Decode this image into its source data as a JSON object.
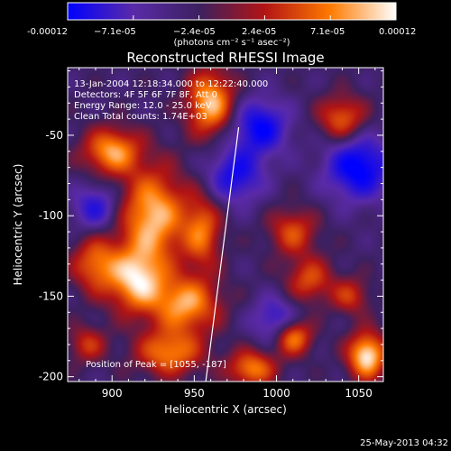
{
  "chart_data": {
    "type": "heatmap",
    "title": "Reconstructed RHESSI Image",
    "colorbar": {
      "ticks": [
        "-0.00012",
        "−7.1e-05",
        "−2.4e-05",
        "2.4e-05",
        "7.1e-05",
        "0.00012"
      ],
      "unit_label": "(photons cm⁻² s⁻¹ asec⁻²)",
      "range": [
        -0.00012,
        0.00012
      ],
      "colors": [
        "#0000ff",
        "#5a2aa8",
        "#3c2060",
        "#b21414",
        "#ff7a00",
        "#ffffff"
      ]
    },
    "xlabel": "Heliocentric X (arcsec)",
    "ylabel": "Heliocentric Y (arcsec)",
    "xlim": [
      873,
      1065
    ],
    "ylim": [
      -203,
      -8
    ],
    "x_ticks": [
      "900",
      "950",
      "1000",
      "1050"
    ],
    "y_ticks": [
      "-50",
      "-100",
      "-150",
      "-200"
    ],
    "annotations": [
      "13-Jan-2004 12:18:34.000 to 12:22:40.000",
      "Detectors: 4F 5F 6F 7F 8F, Att 0",
      "Energy Range: 12.0 - 25.0 keV",
      "Clean     Total counts: 1.74E+03"
    ],
    "peak_label": "Position of Peak = [1055, -187]",
    "peak": [
      1055,
      -187
    ],
    "limb_line": [
      [
        957,
        -203
      ],
      [
        977,
        -45
      ]
    ],
    "sources": [
      {
        "x": 900,
        "y": -60,
        "amp": 0.9,
        "sx": 12,
        "sy": 10
      },
      {
        "x": 925,
        "y": -100,
        "amp": 1.0,
        "sx": 14,
        "sy": 20
      },
      {
        "x": 890,
        "y": -130,
        "amp": 0.7,
        "sx": 10,
        "sy": 12
      },
      {
        "x": 915,
        "y": -140,
        "amp": 1.0,
        "sx": 12,
        "sy": 14
      },
      {
        "x": 945,
        "y": -155,
        "amp": 0.9,
        "sx": 14,
        "sy": 12
      },
      {
        "x": 935,
        "y": -185,
        "amp": 0.8,
        "sx": 14,
        "sy": 10
      },
      {
        "x": 960,
        "y": -30,
        "amp": 1.0,
        "sx": 10,
        "sy": 14
      },
      {
        "x": 955,
        "y": -110,
        "amp": 0.7,
        "sx": 8,
        "sy": 16
      },
      {
        "x": 1010,
        "y": -110,
        "amp": 0.6,
        "sx": 10,
        "sy": 10
      },
      {
        "x": 1040,
        "y": -40,
        "amp": 0.7,
        "sx": 10,
        "sy": 10
      },
      {
        "x": 1020,
        "y": -140,
        "amp": 0.6,
        "sx": 10,
        "sy": 10
      },
      {
        "x": 1010,
        "y": -175,
        "amp": 0.9,
        "sx": 8,
        "sy": 8
      },
      {
        "x": 1055,
        "y": -187,
        "amp": 1.15,
        "sx": 8,
        "sy": 10
      },
      {
        "x": 1045,
        "y": -150,
        "amp": 0.5,
        "sx": 8,
        "sy": 8
      },
      {
        "x": 985,
        "y": -195,
        "amp": 0.8,
        "sx": 10,
        "sy": 8
      },
      {
        "x": 885,
        "y": -180,
        "amp": 0.5,
        "sx": 8,
        "sy": 8
      },
      {
        "x": 990,
        "y": -45,
        "amp": -0.8,
        "sx": 12,
        "sy": 12
      },
      {
        "x": 1050,
        "y": -70,
        "amp": -0.9,
        "sx": 14,
        "sy": 14
      },
      {
        "x": 1000,
        "y": -165,
        "amp": -0.6,
        "sx": 10,
        "sy": 10
      },
      {
        "x": 975,
        "y": -75,
        "amp": -0.7,
        "sx": 12,
        "sy": 12
      },
      {
        "x": 890,
        "y": -95,
        "amp": -0.6,
        "sx": 10,
        "sy": 10
      }
    ]
  },
  "timestamp": "25-May-2013 04:32"
}
